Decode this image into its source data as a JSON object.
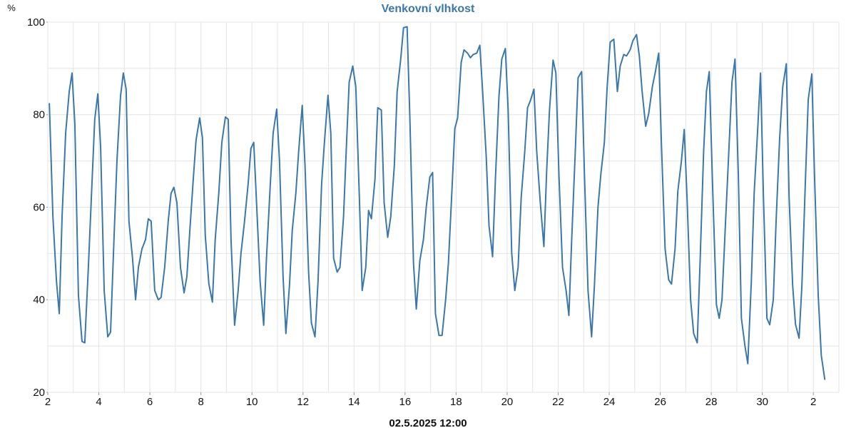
{
  "chart_data": {
    "type": "line",
    "title": "Venkovní vlhkost",
    "y_label": "%",
    "x_label": "02.5.2025 12:00",
    "series": [
      {
        "name": "Venkovní vlhkost",
        "color": "#3b78a9",
        "x": [
          2.06,
          2.2,
          2.34,
          2.45,
          2.56,
          2.7,
          2.84,
          2.95,
          3.06,
          3.2,
          3.34,
          3.45,
          3.59,
          3.73,
          3.84,
          3.96,
          4.07,
          4.21,
          4.35,
          4.46,
          4.6,
          4.71,
          4.85,
          4.96,
          5.07,
          5.18,
          5.32,
          5.44,
          5.55,
          5.69,
          5.83,
          5.94,
          6.05,
          6.19,
          6.33,
          6.44,
          6.58,
          6.72,
          6.83,
          6.94,
          7.06,
          7.2,
          7.34,
          7.45,
          7.59,
          7.7,
          7.81,
          7.95,
          8.06,
          8.17,
          8.31,
          8.45,
          8.56,
          8.7,
          8.82,
          8.96,
          9.07,
          9.18,
          9.32,
          9.46,
          9.57,
          9.71,
          9.85,
          9.96,
          10.07,
          10.18,
          10.32,
          10.46,
          10.57,
          10.71,
          10.83,
          10.97,
          11.08,
          11.22,
          11.33,
          11.47,
          11.58,
          11.72,
          11.83,
          11.97,
          12.08,
          12.22,
          12.33,
          12.47,
          12.59,
          12.73,
          12.84,
          12.98,
          13.09,
          13.2,
          13.34,
          13.45,
          13.59,
          13.7,
          13.81,
          13.95,
          14.07,
          14.21,
          14.32,
          14.46,
          14.57,
          14.68,
          14.82,
          14.93,
          15.07,
          15.18,
          15.32,
          15.44,
          15.58,
          15.69,
          15.83,
          15.94,
          16.08,
          16.19,
          16.33,
          16.44,
          16.58,
          16.72,
          16.83,
          16.97,
          17.08,
          17.19,
          17.33,
          17.45,
          17.59,
          17.7,
          17.84,
          17.95,
          18.06,
          18.2,
          18.31,
          18.45,
          18.56,
          18.67,
          18.81,
          18.93,
          19.04,
          19.18,
          19.29,
          19.43,
          19.54,
          19.68,
          19.79,
          19.93,
          20.04,
          20.18,
          20.3,
          20.43,
          20.55,
          20.69,
          20.8,
          20.91,
          21.05,
          21.16,
          21.3,
          21.44,
          21.55,
          21.66,
          21.8,
          21.91,
          22.03,
          22.17,
          22.31,
          22.42,
          22.53,
          22.67,
          22.78,
          22.92,
          23.03,
          23.17,
          23.31,
          23.42,
          23.56,
          23.67,
          23.81,
          23.92,
          24.04,
          24.18,
          24.32,
          24.43,
          24.57,
          24.68,
          24.82,
          24.93,
          25.07,
          25.18,
          25.29,
          25.43,
          25.55,
          25.69,
          25.8,
          25.94,
          26.05,
          26.19,
          26.33,
          26.44,
          26.58,
          26.69,
          26.83,
          26.94,
          27.05,
          27.19,
          27.31,
          27.45,
          27.56,
          27.7,
          27.81,
          27.92,
          28.06,
          28.2,
          28.31,
          28.42,
          28.56,
          28.67,
          28.81,
          28.93,
          29.06,
          29.18,
          29.32,
          29.43,
          29.57,
          29.68,
          29.82,
          29.93,
          30.04,
          30.18,
          30.29,
          30.43,
          30.54,
          30.68,
          30.8,
          30.94,
          31.05,
          31.19,
          31.3,
          31.44,
          31.55,
          31.69,
          31.8,
          31.94,
          32.05,
          32.19,
          32.31,
          32.45
        ],
        "values": [
          82.5,
          58,
          44,
          37,
          58,
          76,
          85,
          89,
          78,
          41,
          31,
          30.7,
          47,
          65,
          79,
          84.5,
          73,
          42,
          32,
          33,
          54,
          70,
          84,
          89,
          85.5,
          57,
          49,
          40,
          47,
          51,
          53,
          57.5,
          57,
          42,
          40,
          40.5,
          47,
          57,
          63,
          64.3,
          61,
          47,
          41.5,
          45,
          57,
          66,
          74.5,
          79.3,
          75,
          54,
          43.5,
          39.5,
          53,
          63,
          74,
          79.5,
          79,
          53,
          34.5,
          42,
          50,
          57,
          65,
          72.7,
          74,
          61,
          44,
          34.5,
          49,
          64,
          76,
          81.2,
          70,
          45,
          32.7,
          43,
          55,
          63,
          72,
          82,
          69,
          46,
          35,
          32,
          44,
          65,
          74,
          84.2,
          76,
          49,
          46,
          47,
          58,
          73,
          87,
          90.5,
          86,
          62,
          42,
          47,
          59.3,
          57.5,
          66,
          81.5,
          81,
          61,
          53.5,
          58,
          69,
          85,
          92,
          98.8,
          99,
          79,
          48,
          38,
          48.5,
          53,
          60,
          66.5,
          67.5,
          37,
          32.3,
          32.3,
          40,
          48,
          64,
          77,
          79.3,
          91.3,
          94,
          93.3,
          92.3,
          93,
          93.3,
          95,
          85,
          71,
          56,
          49.3,
          66,
          84,
          92,
          94.3,
          81,
          50,
          42,
          47,
          62,
          72,
          81.5,
          83,
          85.5,
          72,
          61,
          51.5,
          68,
          81,
          91.8,
          89,
          67,
          47,
          42,
          36.6,
          53,
          72,
          88,
          89.3,
          67,
          42,
          32,
          43,
          60,
          67,
          74,
          86,
          95.7,
          96.3,
          85,
          90.5,
          93,
          92.7,
          94,
          96,
          97.3,
          92.7,
          85,
          77.5,
          80.3,
          86,
          89,
          93.3,
          73,
          51,
          44.3,
          43.4,
          51,
          63.5,
          70,
          76.8,
          62,
          40,
          32.7,
          30.7,
          48,
          72,
          85,
          89.3,
          63,
          39,
          36,
          40,
          57,
          70,
          87,
          92,
          67,
          36,
          30,
          26.2,
          44,
          63,
          77,
          89,
          63,
          36,
          34.6,
          40,
          57,
          75,
          86,
          91,
          62,
          43,
          34.7,
          31.7,
          43,
          66,
          83.3,
          88.8,
          66,
          41,
          28,
          22.7
        ]
      }
    ],
    "xlim": [
      2,
      33
    ],
    "xticks": [
      2,
      4,
      6,
      8,
      10,
      12,
      14,
      16,
      18,
      20,
      22,
      24,
      26,
      28,
      30,
      {
        "value": 32,
        "label": "2"
      }
    ],
    "ylim": [
      20,
      100
    ],
    "yticks": [
      20,
      40,
      60,
      80,
      100
    ],
    "grid": true,
    "grid_x": [
      2,
      3,
      4,
      5,
      6,
      7,
      8,
      9,
      10,
      11,
      12,
      13,
      14,
      15,
      16,
      17,
      18,
      19,
      20,
      21,
      22,
      23,
      24,
      25,
      26,
      27,
      28,
      29,
      30,
      31,
      32,
      33
    ],
    "grid_y": [
      20,
      30,
      40,
      50,
      60,
      70,
      80,
      90,
      100
    ]
  }
}
